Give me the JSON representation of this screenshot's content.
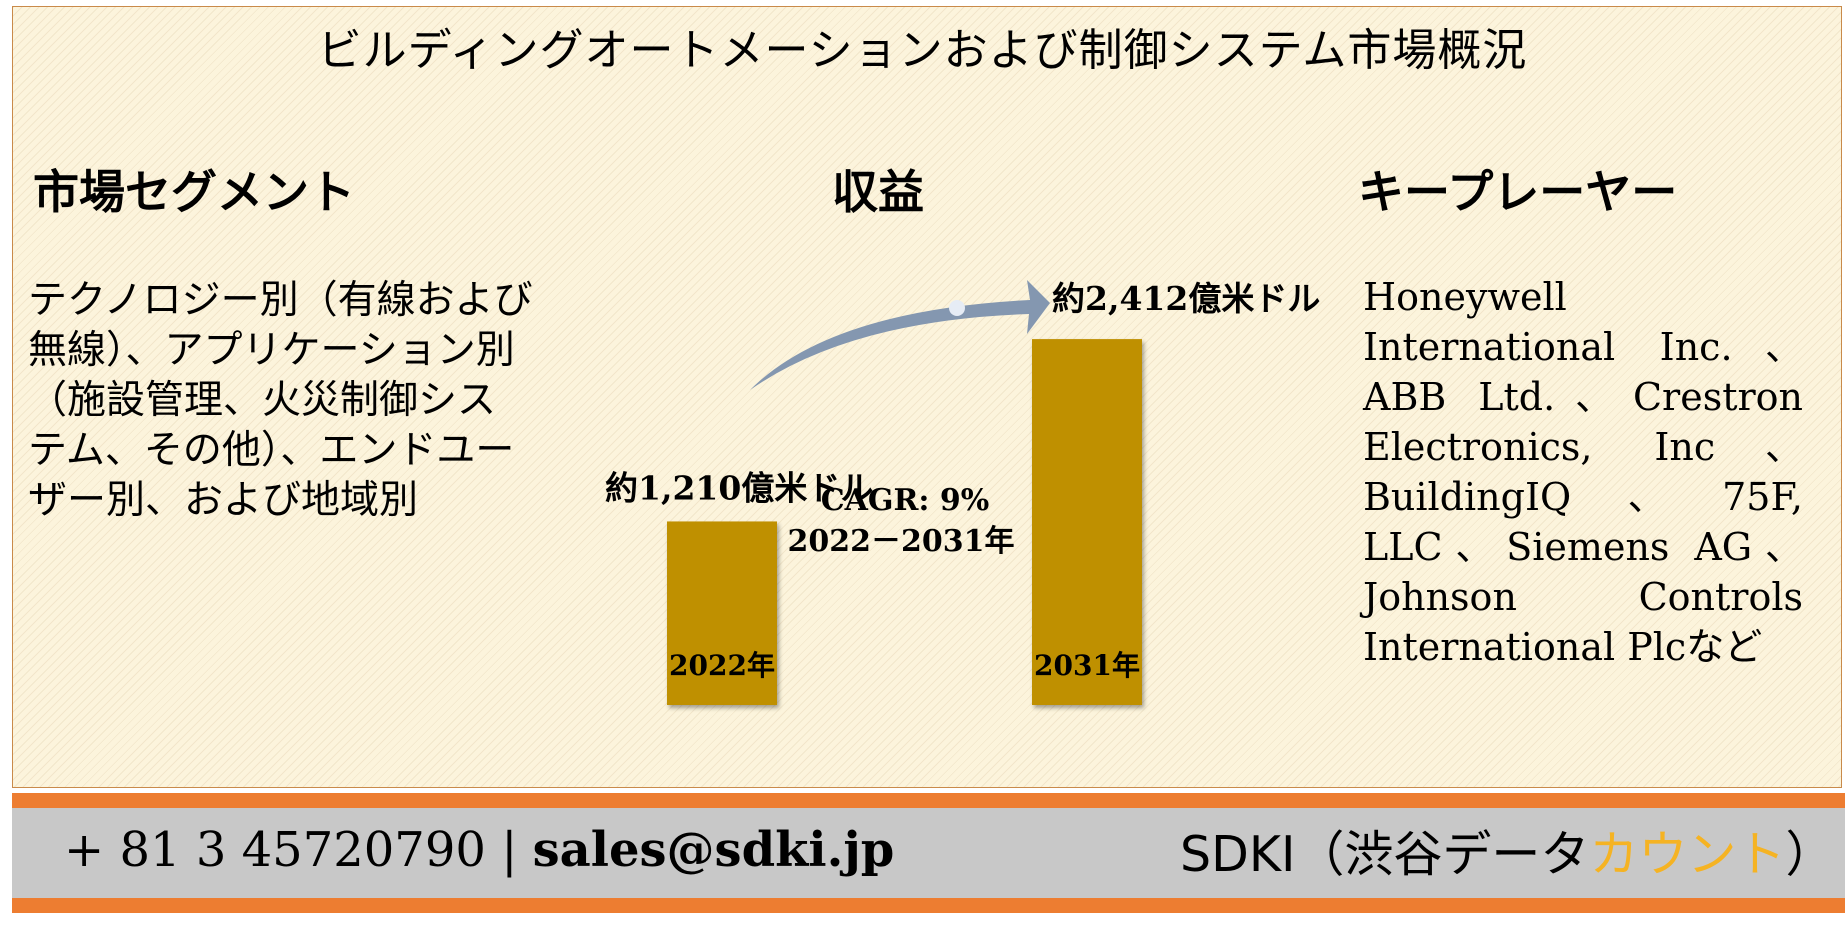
{
  "title": "ビルディングオートメーションおよび制御システム市場概況",
  "sections": {
    "segments": {
      "heading": "市場セグメント",
      "text": "テクノロジー別（有線および無線）、アプリケーション別（施設管理、火災制御システム、その他）、エンドユーザー別、および地域別"
    },
    "revenue": {
      "heading": "収益"
    },
    "key_players": {
      "heading": "キープレーヤー",
      "text": "Honeywell International Inc.、ABB Ltd.、Crestron Electronics, Inc、BuildingIQ、75F, LLC、Siemens AG、Johnson Controls International Plcなど"
    }
  },
  "chart_data": {
    "type": "bar",
    "categories": [
      "2022年",
      "2031年"
    ],
    "values": [
      1210,
      2412
    ],
    "value_labels": [
      "約1,210億米ドル",
      "約2,412億米ドル"
    ],
    "cagr_line1": "CAGR: 9%",
    "cagr_line2": "2022－2031年",
    "bar_color": "#bf9000",
    "arrow_color": "#8497b0"
  },
  "footer": {
    "phone": "+ 81 3 45720790",
    "separator": "|",
    "email": "sales@sdki.jp",
    "brand_main": "SDKI（渋谷データ",
    "brand_accent": "カウント",
    "brand_end": "）",
    "accent_color": "#f5b323",
    "bar_color": "#ed7d31"
  }
}
